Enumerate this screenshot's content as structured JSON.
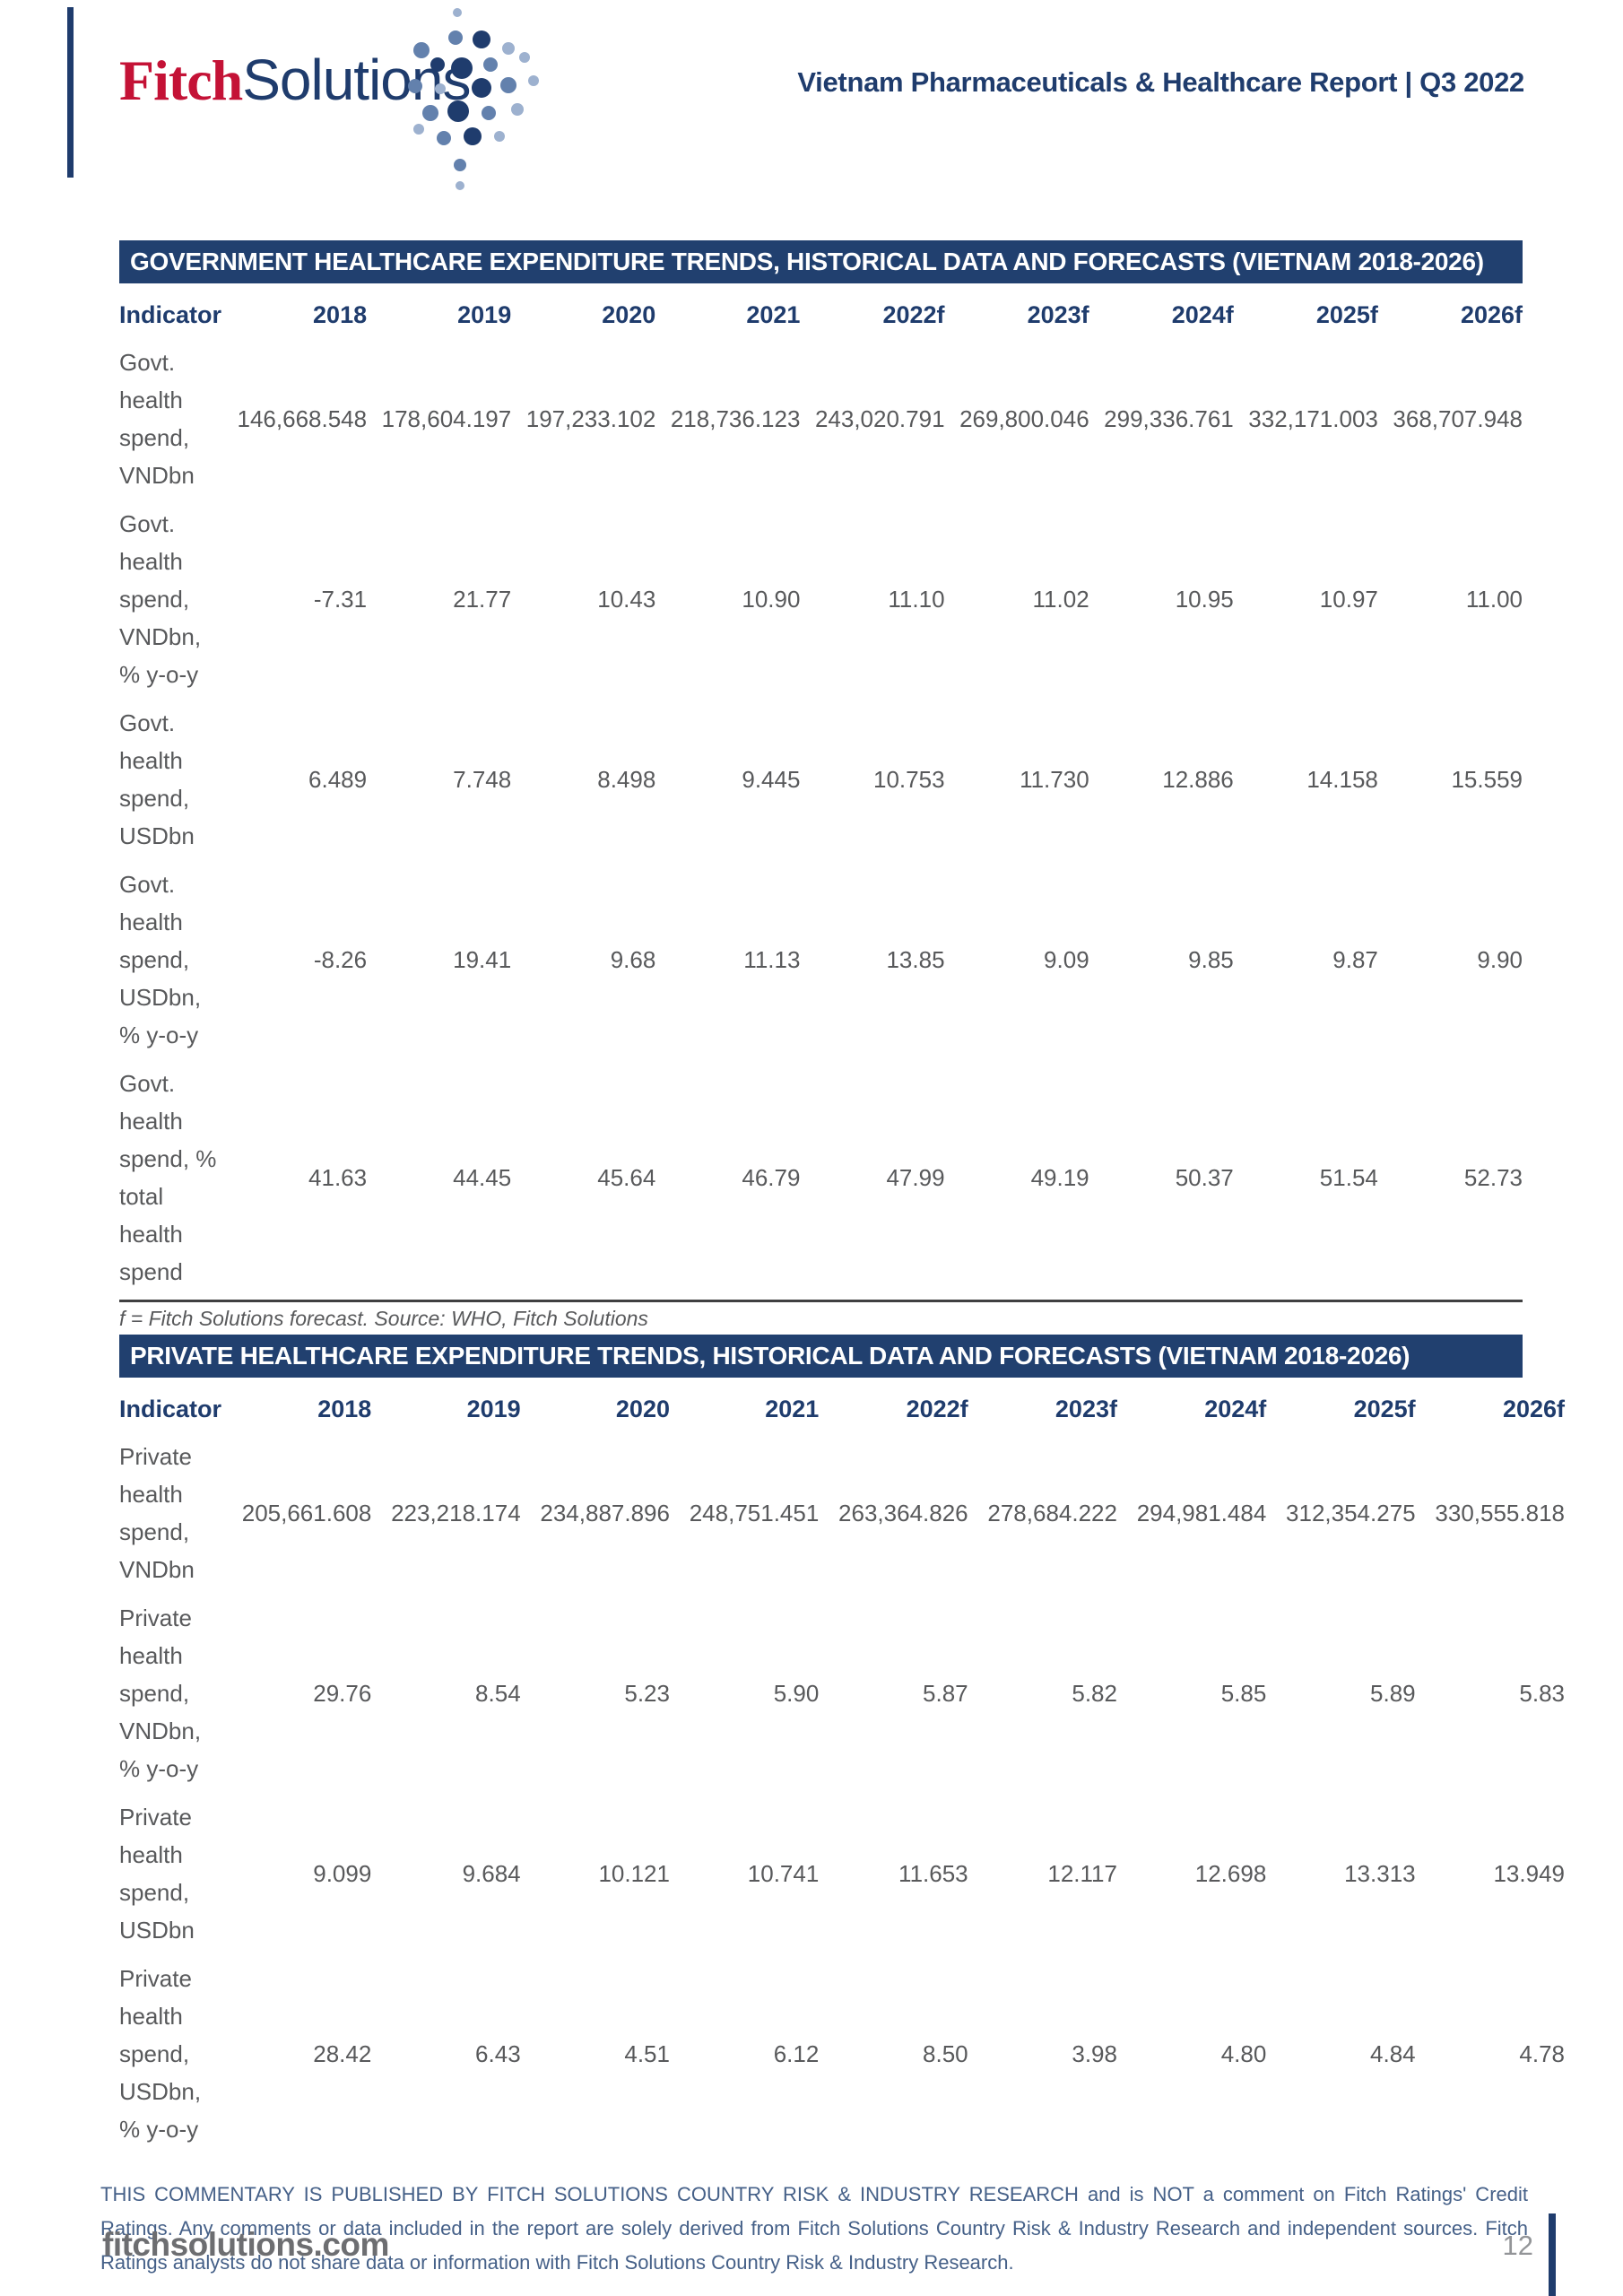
{
  "header": {
    "logo_fitch": "Fitch",
    "logo_solutions": "Solutions",
    "report_title": "Vietnam Pharmaceuticals & Healthcare Report | Q3 2022"
  },
  "colors": {
    "navy": "#1f3c6d",
    "title_bar_bg": "#21406f",
    "fitch_red": "#c41236",
    "body_text_gray": "#58595b",
    "disclaimer_blue": "#456088"
  },
  "tables": [
    {
      "title": "GOVERNMENT HEALTHCARE EXPENDITURE TRENDS, HISTORICAL DATA AND FORECASTS (VIETNAM 2018-2026)",
      "columns": [
        "Indicator",
        "2018",
        "2019",
        "2020",
        "2021",
        "2022f",
        "2023f",
        "2024f",
        "2025f",
        "2026f"
      ],
      "rows": [
        {
          "indicator": "Govt. health spend, VNDbn",
          "values": [
            "146,668.548",
            "178,604.197",
            "197,233.102",
            "218,736.123",
            "243,020.791",
            "269,800.046",
            "299,336.761",
            "332,171.003",
            "368,707.948"
          ]
        },
        {
          "indicator": "Govt. health spend, VNDbn, % y-o-y",
          "values": [
            "-7.31",
            "21.77",
            "10.43",
            "10.90",
            "11.10",
            "11.02",
            "10.95",
            "10.97",
            "11.00"
          ]
        },
        {
          "indicator": "Govt. health spend, USDbn",
          "values": [
            "6.489",
            "7.748",
            "8.498",
            "9.445",
            "10.753",
            "11.730",
            "12.886",
            "14.158",
            "15.559"
          ]
        },
        {
          "indicator": "Govt. health spend, USDbn, % y-o-y",
          "values": [
            "-8.26",
            "19.41",
            "9.68",
            "11.13",
            "13.85",
            "9.09",
            "9.85",
            "9.87",
            "9.90"
          ]
        },
        {
          "indicator": "Govt. health spend, % total health spend",
          "values": [
            "41.63",
            "44.45",
            "45.64",
            "46.79",
            "47.99",
            "49.19",
            "50.37",
            "51.54",
            "52.73"
          ]
        }
      ],
      "footnote": "f = Fitch Solutions forecast. Source: WHO, Fitch Solutions"
    },
    {
      "title": "PRIVATE HEALTHCARE EXPENDITURE TRENDS, HISTORICAL DATA AND FORECASTS (VIETNAM 2018-2026)",
      "columns": [
        "Indicator",
        "2018",
        "2019",
        "2020",
        "2021",
        "2022f",
        "2023f",
        "2024f",
        "2025f",
        "2026f"
      ],
      "rows": [
        {
          "indicator": "Private health spend, VNDbn",
          "values": [
            "205,661.608",
            "223,218.174",
            "234,887.896",
            "248,751.451",
            "263,364.826",
            "278,684.222",
            "294,981.484",
            "312,354.275",
            "330,555.818"
          ]
        },
        {
          "indicator": "Private health spend, VNDbn, % y-o-y",
          "values": [
            "29.76",
            "8.54",
            "5.23",
            "5.90",
            "5.87",
            "5.82",
            "5.85",
            "5.89",
            "5.83"
          ]
        },
        {
          "indicator": "Private health spend, USDbn",
          "values": [
            "9.099",
            "9.684",
            "10.121",
            "10.741",
            "11.653",
            "12.117",
            "12.698",
            "13.313",
            "13.949"
          ]
        },
        {
          "indicator": "Private health spend, USDbn, % y-o-y",
          "values": [
            "28.42",
            "6.43",
            "4.51",
            "6.12",
            "8.50",
            "3.98",
            "4.80",
            "4.84",
            "4.78"
          ]
        }
      ]
    }
  ],
  "footer": {
    "disclaimer": "THIS COMMENTARY IS PUBLISHED BY FITCH SOLUTIONS COUNTRY RISK & INDUSTRY RESEARCH and is NOT a comment on Fitch Ratings' Credit Ratings. Any comments or data included in the report are solely derived from Fitch Solutions Country Risk & Industry Research and independent sources. Fitch Ratings analysts do not share data or information with Fitch Solutions Country Risk & Industry Research.",
    "site": "fitchsolutions.com",
    "page_number": "12"
  }
}
